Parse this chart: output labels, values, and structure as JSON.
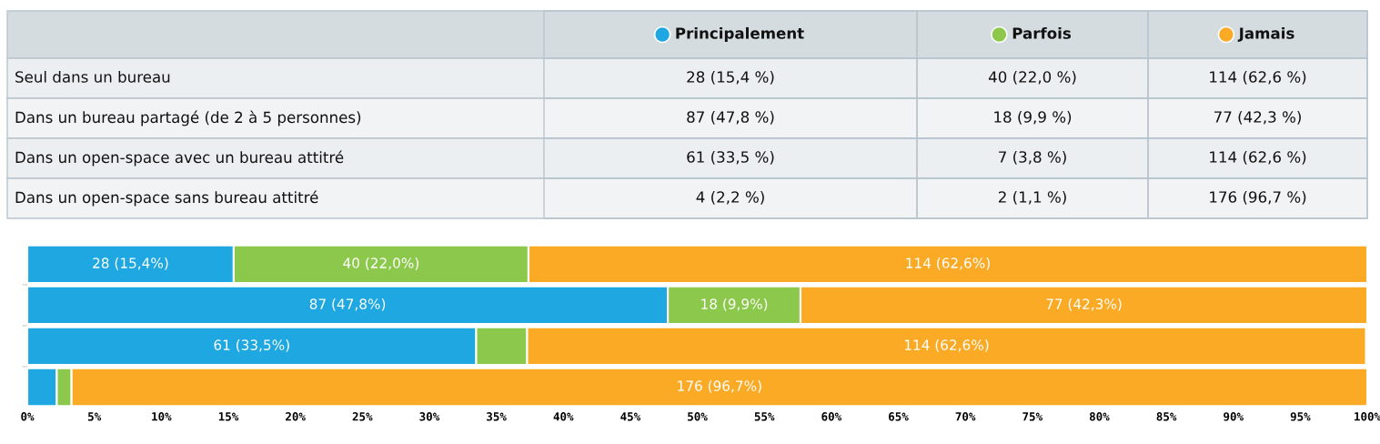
{
  "chart_data": [
    {
      "type": "other",
      "annotations": [
        "Seul dans un bureau",
        "28 (15,4 %)",
        "40 (22,0 %)",
        "114 (62,6 %)",
        "Dans un bureau partagé (de 2 à 5 personnes)",
        "87 (47,8 %)",
        "18 (9,9 %)",
        "77 (42,3 %)",
        "Dans un open-space avec un bureau attitré",
        "61 (33,5 %)",
        "7 (3,8 %)",
        "114 (62,6 %)",
        "Dans un open-space sans bureau attitré",
        "4 (2,2 %)",
        "2 (1,1 %)",
        "176 (96,7 %)"
      ]
    },
    {
      "type": "bar",
      "orientation": "horizontal",
      "stacked": true,
      "legend": "top",
      "categories": [
        null,
        null,
        null,
        null
      ],
      "series": [
        {
          "name": "Principalement",
          "color": "#1ea7e1",
          "values": [
            15.4,
            47.8,
            33.5,
            2.2
          ],
          "value_labels": [
            "28 (15,4%)",
            "87 (47,8%)",
            "61 (33,5%)",
            null
          ]
        },
        {
          "name": "Parfois",
          "color": "#8cc84b",
          "values": [
            22.0,
            9.9,
            3.8,
            1.1
          ],
          "value_labels": [
            "40 (22,0%)",
            "18 (9,9%)",
            null,
            null
          ]
        },
        {
          "name": "Jamais",
          "color": "#fbaa26",
          "values": [
            62.6,
            42.3,
            62.6,
            96.7
          ],
          "value_labels": [
            "114 (62,6%)",
            "77 (42,3%)",
            "114 (62,6%)",
            "176 (96,7%)"
          ]
        }
      ],
      "xlim": [
        0,
        100
      ],
      "xticks": [
        {
          "value": 0,
          "label": "0%"
        },
        {
          "value": 5,
          "label": "5%"
        },
        {
          "value": 10,
          "label": "10%"
        },
        {
          "value": 15,
          "label": "15%"
        },
        {
          "value": 20,
          "label": "20%"
        },
        {
          "value": 25,
          "label": "25%"
        },
        {
          "value": 30,
          "label": "30%"
        },
        {
          "value": 35,
          "label": "35%"
        },
        {
          "value": 40,
          "label": "40%"
        },
        {
          "value": 45,
          "label": "45%"
        },
        {
          "value": 50,
          "label": "50%"
        },
        {
          "value": 55,
          "label": "55%"
        },
        {
          "value": 60,
          "label": "60%"
        },
        {
          "value": 65,
          "label": "65%"
        },
        {
          "value": 70,
          "label": "70%"
        },
        {
          "value": 75,
          "label": "75%"
        },
        {
          "value": 80,
          "label": "80%"
        },
        {
          "value": 85,
          "label": "85%"
        },
        {
          "value": 90,
          "label": "90%"
        },
        {
          "value": 95,
          "label": "95%"
        },
        {
          "value": 100,
          "label": "100%"
        }
      ],
      "tick_labels": "x"
    }
  ]
}
